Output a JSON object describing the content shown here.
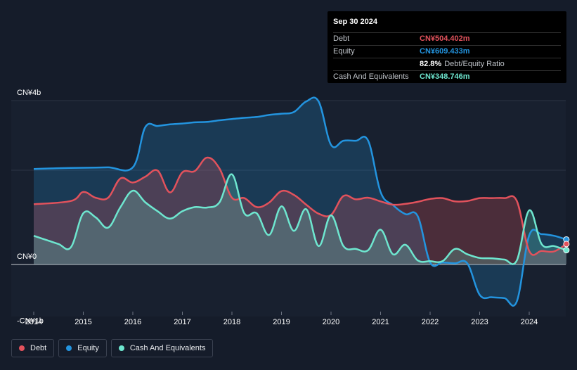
{
  "tooltip": {
    "date": "Sep 30 2024",
    "debt_label": "Debt",
    "debt_value": "CN¥504.402m",
    "equity_label": "Equity",
    "equity_value": "CN¥609.433m",
    "ratio_value": "82.8%",
    "ratio_label": "Debt/Equity Ratio",
    "cash_label": "Cash And Equivalents",
    "cash_value": "CN¥348.746m"
  },
  "legend": {
    "debt": "Debt",
    "equity": "Equity",
    "cash": "Cash And Equivalents"
  },
  "colors": {
    "debt": "#e2525c",
    "equity": "#2394df",
    "cash": "#6ee6cf",
    "background": "#151c2a"
  },
  "chart_data": {
    "type": "area",
    "y_unit": "CN¥ billions",
    "ylim": [
      -1.2,
      4
    ],
    "y_tick_labels": [
      {
        "value": 4,
        "label": "CN¥4b"
      },
      {
        "value": 0,
        "label": "CN¥0"
      },
      {
        "value": -1,
        "label": "-CN¥1b"
      }
    ],
    "x_tick_labels": [
      "2014",
      "2015",
      "2016",
      "2017",
      "2018",
      "2019",
      "2020",
      "2021",
      "2022",
      "2023",
      "2024"
    ],
    "xlim": [
      2013.5,
      2024.85
    ],
    "series": [
      {
        "name": "Debt",
        "x": [
          2014.0,
          2014.75,
          2015.0,
          2015.25,
          2015.5,
          2015.75,
          2016.0,
          2016.25,
          2016.5,
          2016.75,
          2017.0,
          2017.25,
          2017.5,
          2017.75,
          2018.0,
          2018.25,
          2018.5,
          2018.75,
          2019.0,
          2019.25,
          2019.5,
          2019.75,
          2020.0,
          2020.25,
          2020.5,
          2020.75,
          2021.0,
          2021.25,
          2021.5,
          2021.75,
          2022.0,
          2022.25,
          2022.5,
          2022.75,
          2023.0,
          2023.25,
          2023.5,
          2023.75,
          2024.0,
          2024.25,
          2024.5,
          2024.75
        ],
        "values": [
          1.47,
          1.55,
          1.77,
          1.63,
          1.63,
          2.1,
          2.0,
          2.14,
          2.29,
          1.76,
          2.25,
          2.28,
          2.61,
          2.34,
          1.63,
          1.62,
          1.4,
          1.51,
          1.79,
          1.7,
          1.46,
          1.24,
          1.21,
          1.67,
          1.59,
          1.63,
          1.54,
          1.46,
          1.48,
          1.53,
          1.6,
          1.62,
          1.54,
          1.55,
          1.62,
          1.62,
          1.62,
          1.55,
          0.33,
          0.33,
          0.32,
          0.5
        ]
      },
      {
        "name": "Equity",
        "x": [
          2014.0,
          2014.5,
          2015.0,
          2015.5,
          2016.0,
          2016.25,
          2016.5,
          2016.75,
          2017.0,
          2017.25,
          2017.5,
          2017.75,
          2018.0,
          2018.25,
          2018.5,
          2018.75,
          2019.0,
          2019.25,
          2019.5,
          2019.75,
          2020.0,
          2020.25,
          2020.5,
          2020.75,
          2021.0,
          2021.25,
          2021.5,
          2021.75,
          2022.0,
          2022.25,
          2022.5,
          2022.75,
          2023.0,
          2023.25,
          2023.5,
          2023.75,
          2024.0,
          2024.25,
          2024.5,
          2024.75
        ],
        "values": [
          2.33,
          2.35,
          2.36,
          2.37,
          2.37,
          3.35,
          3.38,
          3.42,
          3.44,
          3.47,
          3.48,
          3.52,
          3.55,
          3.58,
          3.6,
          3.65,
          3.68,
          3.72,
          3.98,
          3.98,
          2.92,
          3.02,
          3.02,
          3.02,
          1.77,
          1.45,
          1.23,
          1.18,
          0.05,
          0.05,
          0.03,
          0.03,
          -0.74,
          -0.8,
          -0.82,
          -0.9,
          0.71,
          0.74,
          0.7,
          0.61
        ]
      },
      {
        "name": "Cash And Equivalents",
        "x": [
          2014.0,
          2014.25,
          2014.5,
          2014.75,
          2015.0,
          2015.25,
          2015.5,
          2015.75,
          2016.0,
          2016.25,
          2016.5,
          2016.75,
          2017.0,
          2017.25,
          2017.5,
          2017.75,
          2018.0,
          2018.25,
          2018.5,
          2018.75,
          2019.0,
          2019.25,
          2019.5,
          2019.75,
          2020.0,
          2020.25,
          2020.5,
          2020.75,
          2021.0,
          2021.25,
          2021.5,
          2021.75,
          2022.0,
          2022.25,
          2022.5,
          2022.75,
          2023.0,
          2023.25,
          2023.5,
          2023.75,
          2024.0,
          2024.25,
          2024.5,
          2024.75
        ],
        "values": [
          0.7,
          0.6,
          0.5,
          0.42,
          1.25,
          1.15,
          0.9,
          1.4,
          1.8,
          1.52,
          1.3,
          1.12,
          1.3,
          1.4,
          1.39,
          1.52,
          2.2,
          1.25,
          1.25,
          0.72,
          1.42,
          0.82,
          1.35,
          0.45,
          1.2,
          0.45,
          0.38,
          0.35,
          0.85,
          0.25,
          0.48,
          0.1,
          0.08,
          0.08,
          0.38,
          0.25,
          0.16,
          0.15,
          0.12,
          0.1,
          1.32,
          0.5,
          0.45,
          0.35
        ]
      }
    ],
    "grid": true,
    "legend_position": "bottom-left"
  }
}
